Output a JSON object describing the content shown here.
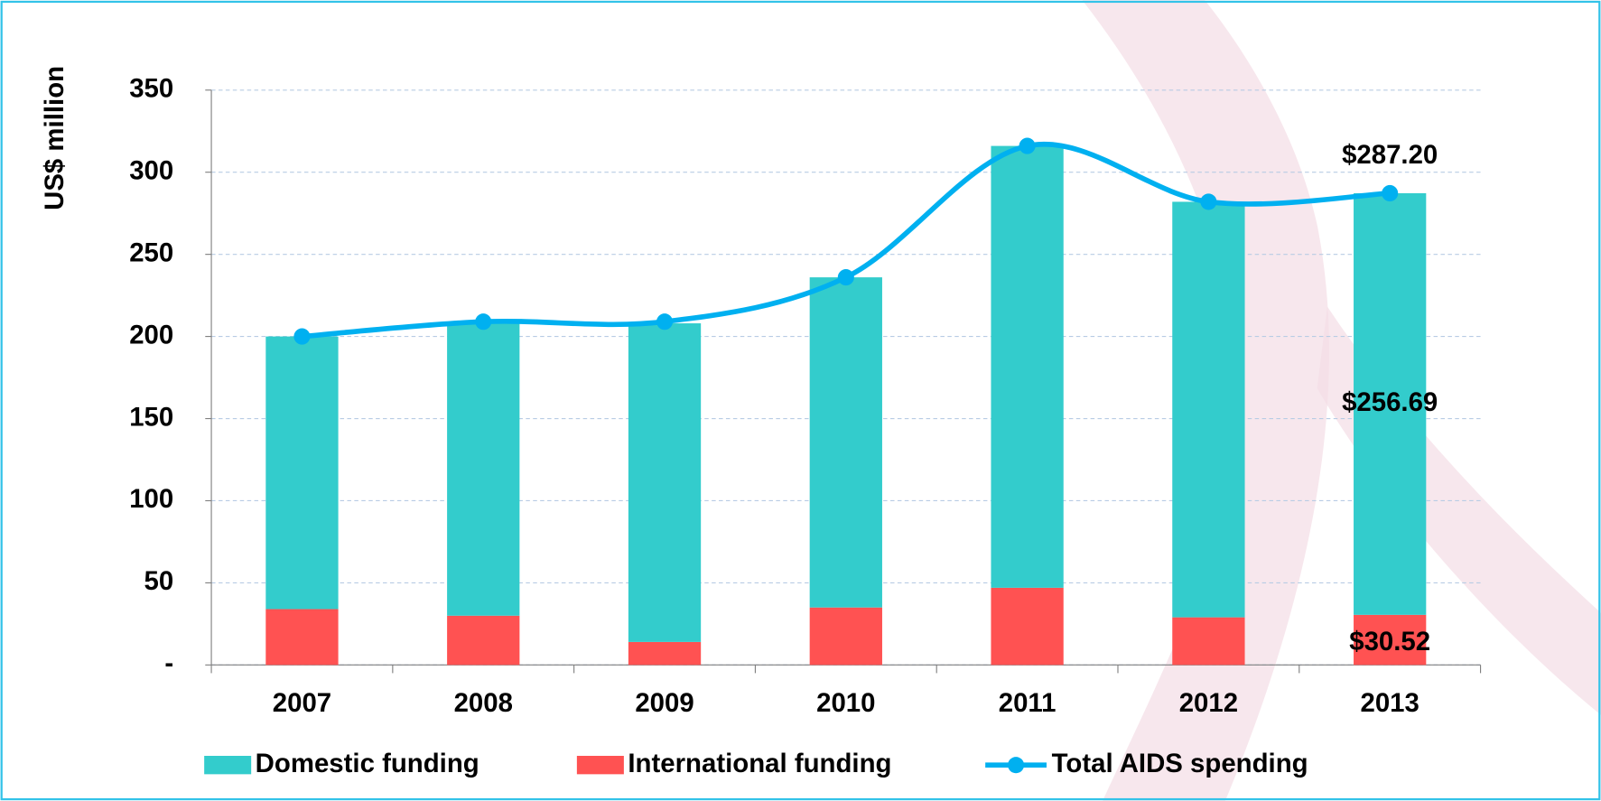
{
  "chart_data": {
    "type": "stacked_bar_line",
    "y_label": "US$ million",
    "categories": [
      "2007",
      "2008",
      "2009",
      "2010",
      "2011",
      "2012",
      "2013"
    ],
    "series": [
      {
        "name": "International funding",
        "color": "#ff5252",
        "kind": "bar",
        "values": [
          34,
          30,
          14,
          35,
          47,
          29,
          30.52
        ],
        "value_labels": [
          null,
          null,
          null,
          null,
          null,
          null,
          "$30.52"
        ]
      },
      {
        "name": "Domestic funding",
        "color": "#33cccc",
        "kind": "bar",
        "values": [
          166,
          178,
          194,
          201,
          269,
          253,
          256.69
        ],
        "value_labels": [
          null,
          null,
          null,
          null,
          null,
          null,
          "$256.69"
        ]
      },
      {
        "name": "Total AIDS spending",
        "color": "#00b0f0",
        "kind": "line",
        "values": [
          200,
          209,
          209,
          236,
          316,
          282,
          287.2
        ],
        "value_labels": [
          null,
          null,
          null,
          null,
          null,
          null,
          "$287.20"
        ]
      }
    ],
    "legend_order": [
      1,
      0,
      2
    ],
    "ylim": [
      0,
      350
    ],
    "yticks": [
      {
        "value": 0,
        "label": "-"
      },
      50,
      100,
      150,
      200,
      250,
      300,
      350
    ],
    "grid": true,
    "legend": "bottom"
  }
}
